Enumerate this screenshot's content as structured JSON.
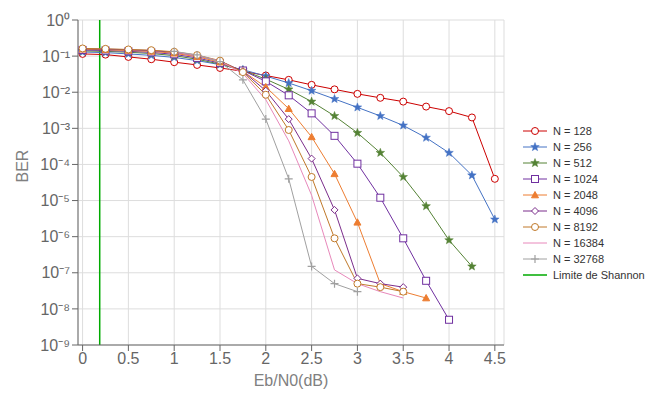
{
  "chart_data": {
    "type": "line",
    "xlabel": "Eb/N0(dB)",
    "ylabel": "BER",
    "log": "y",
    "grid": true,
    "legend": "right",
    "xlim": [
      -0.05,
      4.6
    ],
    "xticks": [
      0,
      0.5,
      1,
      1.5,
      2,
      2.5,
      3,
      3.5,
      4,
      4.5
    ],
    "ylim": [
      1e-09,
      1
    ],
    "yticks": [
      {
        "value": 1e-09,
        "label": "10⁻⁹"
      },
      {
        "value": 1e-08,
        "label": "10⁻⁸"
      },
      {
        "value": 1e-07,
        "label": "10⁻⁷"
      },
      {
        "value": 1e-06,
        "label": "10⁻⁶"
      },
      {
        "value": 1e-05,
        "label": "10⁻⁵"
      },
      {
        "value": 0.0001,
        "label": "10⁻⁴"
      },
      {
        "value": 0.001,
        "label": "10⁻³"
      },
      {
        "value": 0.01,
        "label": "10⁻²"
      },
      {
        "value": 0.1,
        "label": "10⁻¹"
      },
      {
        "value": 1,
        "label": "10⁰"
      }
    ],
    "series": [
      {
        "name": "N = 128",
        "color": "#cc0000",
        "marker": "circle_open",
        "x": [
          0.0,
          0.25,
          0.5,
          0.75,
          1.0,
          1.25,
          1.5,
          1.75,
          2.0,
          2.25,
          2.5,
          2.75,
          3.0,
          3.25,
          3.5,
          3.75,
          4.0,
          4.25,
          4.5
        ],
        "values": [
          0.115,
          0.11,
          0.095,
          0.082,
          0.068,
          0.057,
          0.047,
          0.038,
          0.029,
          0.022,
          0.016,
          0.012,
          0.009,
          0.007,
          0.0055,
          0.004,
          0.003,
          0.002,
          4e-05
        ]
      },
      {
        "name": "N = 256",
        "color": "#4472c4",
        "marker": "star",
        "x": [
          0.0,
          0.25,
          0.5,
          0.75,
          1.0,
          1.25,
          1.5,
          1.75,
          2.0,
          2.25,
          2.5,
          2.75,
          3.0,
          3.25,
          3.5,
          3.75,
          4.0,
          4.25,
          4.5
        ],
        "values": [
          0.13,
          0.125,
          0.115,
          0.105,
          0.092,
          0.075,
          0.058,
          0.042,
          0.028,
          0.018,
          0.011,
          0.0065,
          0.0038,
          0.0022,
          0.0012,
          0.00055,
          0.00021,
          5e-05,
          3e-06
        ]
      },
      {
        "name": "N = 512",
        "color": "#548235",
        "marker": "star",
        "x": [
          0.0,
          0.25,
          0.5,
          0.75,
          1.0,
          1.25,
          1.5,
          1.75,
          2.0,
          2.25,
          2.5,
          2.75,
          3.0,
          3.25,
          3.5,
          3.75,
          4.0,
          4.25
        ],
        "values": [
          0.14,
          0.135,
          0.128,
          0.118,
          0.103,
          0.082,
          0.06,
          0.04,
          0.023,
          0.012,
          0.0055,
          0.0022,
          0.00075,
          0.00021,
          4.5e-05,
          7e-06,
          8e-07,
          1.5e-07
        ]
      },
      {
        "name": "N = 1024",
        "color": "#7030a0",
        "marker": "square_open",
        "x": [
          0.0,
          0.25,
          0.5,
          0.75,
          1.0,
          1.25,
          1.5,
          1.75,
          2.0,
          2.25,
          2.5,
          2.75,
          3.0,
          3.25,
          3.5,
          3.75,
          4.0
        ],
        "values": [
          0.148,
          0.143,
          0.136,
          0.127,
          0.112,
          0.089,
          0.064,
          0.04,
          0.02,
          0.0082,
          0.0026,
          0.00062,
          0.000105,
          1.2e-05,
          9e-07,
          6e-08,
          5e-09
        ]
      },
      {
        "name": "N = 2048",
        "color": "#ed7d31",
        "marker": "triangle",
        "x": [
          0.0,
          0.25,
          0.5,
          0.75,
          1.0,
          1.25,
          1.5,
          1.75,
          2.0,
          2.25,
          2.5,
          2.75,
          3.0,
          3.25,
          3.5,
          3.75
        ],
        "values": [
          0.155,
          0.15,
          0.143,
          0.135,
          0.12,
          0.096,
          0.068,
          0.038,
          0.014,
          0.0035,
          0.00058,
          5.5e-05,
          2.5e-06,
          5e-08,
          3e-08,
          2e-08
        ]
      },
      {
        "name": "N = 4096",
        "color": "#7b2d8b",
        "marker": "diamond_open",
        "x": [
          0.0,
          0.25,
          0.5,
          0.75,
          1.0,
          1.25,
          1.5,
          1.75,
          2.0,
          2.25,
          2.5,
          2.75,
          3.0,
          3.25,
          3.5
        ],
        "values": [
          0.16,
          0.156,
          0.15,
          0.142,
          0.128,
          0.103,
          0.073,
          0.038,
          0.011,
          0.0018,
          0.000145,
          5.5e-06,
          7e-08,
          5e-08,
          4e-08
        ]
      },
      {
        "name": "N = 8192",
        "color": "#c0792a",
        "marker": "circle_open",
        "x": [
          0.0,
          0.25,
          0.5,
          0.75,
          1.0,
          1.25,
          1.5,
          1.75,
          2.0,
          2.25,
          2.5,
          2.75,
          3.0,
          3.25,
          3.5
        ],
        "values": [
          0.163,
          0.159,
          0.153,
          0.146,
          0.132,
          0.107,
          0.075,
          0.036,
          0.0085,
          0.0009,
          4.5e-05,
          9e-07,
          5e-08,
          4e-08,
          3e-08
        ]
      },
      {
        "name": "N = 16384",
        "color": "#e888bb",
        "marker": "none",
        "x": [
          1.0,
          1.25,
          1.5,
          1.75,
          2.0,
          2.25,
          2.5,
          2.75,
          3.0,
          3.25,
          3.5
        ],
        "values": [
          0.13,
          0.104,
          0.073,
          0.033,
          0.0062,
          0.00045,
          1.4e-05,
          1.2e-07,
          5e-08,
          3e-08,
          2e-08
        ]
      },
      {
        "name": "N = 32768",
        "color": "#a0a0a0",
        "marker": "plus",
        "x": [
          1.0,
          1.25,
          1.5,
          1.75,
          2.0,
          2.25,
          2.5,
          2.75,
          3.0
        ],
        "values": [
          0.135,
          0.108,
          0.07,
          0.022,
          0.0018,
          4e-05,
          1.5e-07,
          5e-08,
          3e-08
        ]
      },
      {
        "name": "Limite de Shannon",
        "type": "vline",
        "color": "#00aa00",
        "x": 0.187
      }
    ]
  }
}
